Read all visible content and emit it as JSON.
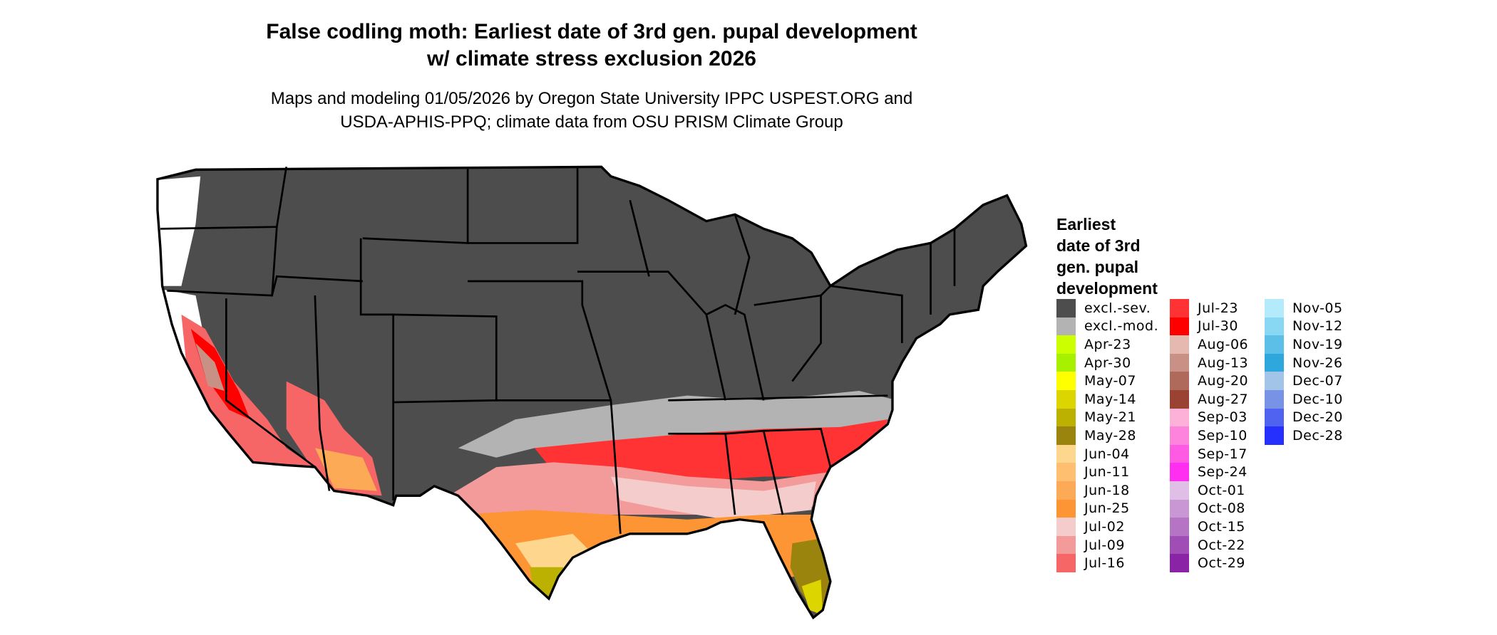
{
  "title": {
    "line1": "False codling moth: Earliest date of 3rd gen. pupal development",
    "line2": "w/ climate stress exclusion 2026"
  },
  "subtitle": {
    "line1": "Maps and modeling 01/05/2026 by Oregon State University IPPC USPEST.ORG and",
    "line2": "USDA-APHIS-PPQ; climate data from OSU PRISM Climate Group"
  },
  "legend": {
    "title_lines": [
      "Earliest",
      "date of 3rd",
      "gen. pupal",
      "development"
    ],
    "columns": [
      [
        {
          "label": "excl.-sev.",
          "color": "#4d4d4d"
        },
        {
          "label": "excl.-mod.",
          "color": "#b3b3b3"
        },
        {
          "label": "Apr-23",
          "color": "#ccff00"
        },
        {
          "label": "Apr-30",
          "color": "#a6f000"
        },
        {
          "label": "May-07",
          "color": "#ffff00"
        },
        {
          "label": "May-14",
          "color": "#dcd500"
        },
        {
          "label": "May-21",
          "color": "#bcb000"
        },
        {
          "label": "May-28",
          "color": "#9a840e"
        },
        {
          "label": "Jun-04",
          "color": "#fed68e"
        },
        {
          "label": "Jun-11",
          "color": "#fec070"
        },
        {
          "label": "Jun-18",
          "color": "#fcaa55"
        },
        {
          "label": "Jun-25",
          "color": "#fd9535"
        },
        {
          "label": "Jul-02",
          "color": "#f4cccc"
        },
        {
          "label": "Jul-09",
          "color": "#f39a9a"
        },
        {
          "label": "Jul-16",
          "color": "#f66666"
        }
      ],
      [
        {
          "label": "Jul-23",
          "color": "#ff3333"
        },
        {
          "label": "Jul-30",
          "color": "#ff0000"
        },
        {
          "label": "Aug-06",
          "color": "#e5b8b0"
        },
        {
          "label": "Aug-13",
          "color": "#c99085"
        },
        {
          "label": "Aug-20",
          "color": "#b06a5b"
        },
        {
          "label": "Aug-27",
          "color": "#9a4332"
        },
        {
          "label": "Sep-03",
          "color": "#fdb0d8"
        },
        {
          "label": "Sep-10",
          "color": "#fe83dd"
        },
        {
          "label": "Sep-17",
          "color": "#fe5ae4"
        },
        {
          "label": "Sep-24",
          "color": "#ff2ef0"
        },
        {
          "label": "Oct-01",
          "color": "#e0bfe6"
        },
        {
          "label": "Oct-08",
          "color": "#c998d4"
        },
        {
          "label": "Oct-15",
          "color": "#b574c4"
        },
        {
          "label": "Oct-22",
          "color": "#a04db5"
        },
        {
          "label": "Oct-29",
          "color": "#8b23a6"
        }
      ],
      [
        {
          "label": "Nov-05",
          "color": "#b3ebfd"
        },
        {
          "label": "Nov-12",
          "color": "#88d7f3"
        },
        {
          "label": "Nov-19",
          "color": "#5bbfe8"
        },
        {
          "label": "Nov-26",
          "color": "#2ea7dc"
        },
        {
          "label": "Dec-07",
          "color": "#a1c4e8"
        },
        {
          "label": "Dec-10",
          "color": "#7893e6"
        },
        {
          "label": "Dec-20",
          "color": "#4f63f0"
        },
        {
          "label": "Dec-28",
          "color": "#2530fe"
        }
      ]
    ]
  }
}
